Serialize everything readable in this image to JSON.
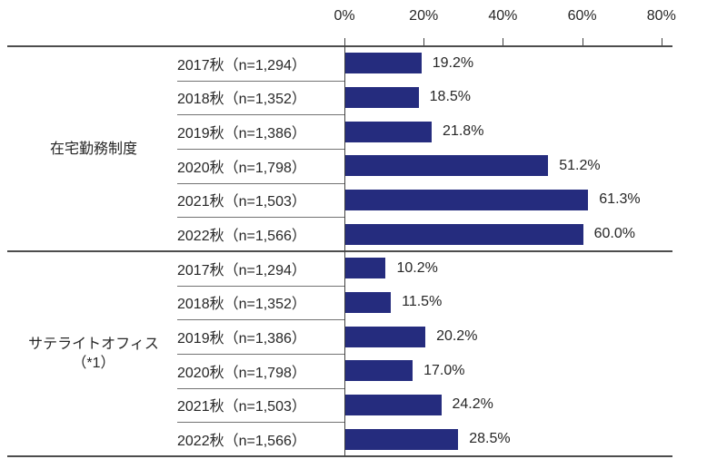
{
  "chart_data": {
    "type": "bar",
    "orientation": "horizontal",
    "title": "",
    "xlabel": "",
    "ylabel": "",
    "bar_color": "#252c7e",
    "x_axis": {
      "min": 0,
      "max": 80,
      "tick_labels": [
        "0%",
        "20%",
        "40%",
        "60%",
        "80%"
      ],
      "tick_values": [
        0,
        20,
        40,
        60,
        80
      ]
    },
    "legend": null,
    "grid": false,
    "groups": [
      {
        "label_lines": [
          "在宅勤務制度"
        ],
        "rows": [
          {
            "label": "2017秋（n=1,294）",
            "value": 19.2,
            "value_label": "19.2%"
          },
          {
            "label": "2018秋（n=1,352）",
            "value": 18.5,
            "value_label": "18.5%"
          },
          {
            "label": "2019秋（n=1,386）",
            "value": 21.8,
            "value_label": "21.8%"
          },
          {
            "label": "2020秋（n=1,798）",
            "value": 51.2,
            "value_label": "51.2%"
          },
          {
            "label": "2021秋（n=1,503）",
            "value": 61.3,
            "value_label": "61.3%"
          },
          {
            "label": "2022秋（n=1,566）",
            "value": 60.0,
            "value_label": "60.0%"
          }
        ]
      },
      {
        "label_lines": [
          "サテライトオフィス",
          "（*1）"
        ],
        "rows": [
          {
            "label": "2017秋（n=1,294）",
            "value": 10.2,
            "value_label": "10.2%"
          },
          {
            "label": "2018秋（n=1,352）",
            "value": 11.5,
            "value_label": "11.5%"
          },
          {
            "label": "2019秋（n=1,386）",
            "value": 20.2,
            "value_label": "20.2%"
          },
          {
            "label": "2020秋（n=1,798）",
            "value": 17.0,
            "value_label": "17.0%"
          },
          {
            "label": "2021秋（n=1,503）",
            "value": 24.2,
            "value_label": "24.2%"
          },
          {
            "label": "2022秋（n=1,566）",
            "value": 28.5,
            "value_label": "28.5%"
          }
        ]
      }
    ]
  }
}
